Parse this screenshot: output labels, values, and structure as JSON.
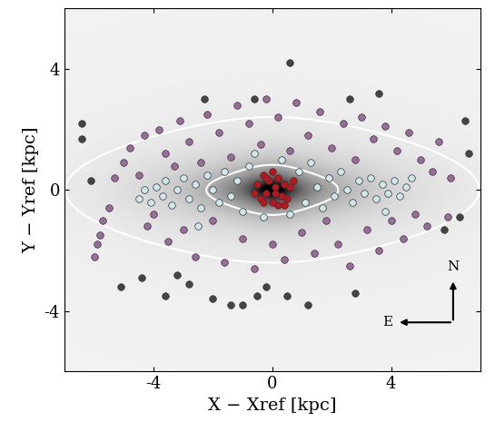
{
  "chart_data": {
    "type": "scatter",
    "xlabel": "X − Xref [kpc]",
    "ylabel": "Y − Yref [kpc]",
    "annotations": [
      "N",
      "E"
    ],
    "xlim": [
      -7,
      7
    ],
    "ylim": [
      -6,
      6
    ],
    "xticks": [
      -4,
      0,
      4
    ],
    "yticks": [
      -4,
      0,
      4
    ],
    "grid": false,
    "marker": "o",
    "series": [
      {
        "color": "#444444",
        "x": [
          -6.4,
          -6.4,
          -6.1,
          -2.3,
          -0.6,
          0.6,
          2.6,
          3.6,
          6.5,
          6.6,
          -3.2,
          -2.8,
          -2.0,
          -1.4,
          -1.0,
          -0.5,
          -0.2,
          0.5,
          1.2,
          -5.1,
          -4.4,
          -3.6,
          5.8,
          6.3,
          2.8
        ],
        "y": [
          2.2,
          1.7,
          0.3,
          3.0,
          3.0,
          4.2,
          3.0,
          3.2,
          2.3,
          1.2,
          -2.8,
          -3.1,
          -3.6,
          -3.8,
          -3.8,
          -3.5,
          -3.2,
          -3.5,
          -3.8,
          -3.2,
          -2.9,
          -3.5,
          -1.3,
          -0.9,
          -3.4
        ]
      },
      {
        "color": "#9b6b9b",
        "x": [
          -6.0,
          -5.9,
          -5.8,
          -5.7,
          -5.5,
          -5.3,
          -5.0,
          -4.8,
          -4.5,
          -4.3,
          -4.2,
          -4.0,
          -3.8,
          -3.6,
          -3.5,
          -3.3,
          -3.1,
          -3.0,
          -2.8,
          -2.6,
          -2.4,
          -2.2,
          -2.0,
          -1.8,
          -1.6,
          -1.4,
          -1.2,
          -1.0,
          -0.8,
          -0.6,
          -0.4,
          -0.2,
          0.0,
          0.2,
          0.4,
          0.6,
          0.8,
          1.0,
          1.2,
          1.4,
          1.6,
          1.8,
          2.0,
          2.2,
          2.4,
          2.6,
          2.8,
          3.0,
          3.2,
          3.4,
          3.6,
          3.8,
          4.0,
          4.2,
          4.4,
          4.6,
          4.8,
          5.0,
          5.2,
          5.4,
          5.6,
          5.9,
          6.0
        ],
        "y": [
          -2.2,
          -1.8,
          -1.5,
          -1.0,
          -0.6,
          0.4,
          0.9,
          1.4,
          0.5,
          1.8,
          -1.2,
          -0.8,
          2.0,
          1.2,
          -1.7,
          0.8,
          2.3,
          -1.3,
          1.6,
          -2.2,
          0.9,
          2.5,
          -1.0,
          1.9,
          -2.4,
          1.1,
          2.8,
          -1.6,
          2.2,
          -2.6,
          1.5,
          3.0,
          -1.8,
          2.4,
          -2.3,
          1.3,
          2.9,
          -1.4,
          1.8,
          -2.1,
          2.6,
          -1.0,
          1.4,
          -1.8,
          2.2,
          -2.5,
          1.0,
          2.4,
          -1.3,
          1.7,
          -2.0,
          2.1,
          -1.0,
          1.3,
          -1.6,
          1.9,
          -0.8,
          1.0,
          -1.2,
          0.6,
          1.6,
          -0.9,
          0.4
        ]
      },
      {
        "color": "#cfe6ea",
        "x": [
          -4.5,
          -4.3,
          -4.1,
          -3.9,
          -3.7,
          -3.6,
          -3.4,
          -3.2,
          -3.0,
          -2.8,
          -2.6,
          -2.4,
          -2.2,
          -2.0,
          -1.8,
          -1.6,
          -1.4,
          -1.2,
          -1.0,
          -0.8,
          -0.6,
          -0.3,
          0.3,
          0.6,
          0.9,
          1.1,
          1.3,
          1.5,
          1.7,
          1.9,
          2.1,
          2.3,
          2.5,
          2.7,
          2.9,
          3.1,
          3.3,
          3.5,
          3.7,
          3.9,
          4.1,
          4.3,
          4.5,
          4.7,
          -2.5,
          3.8
        ],
        "y": [
          -0.3,
          0.0,
          -0.4,
          0.1,
          -0.2,
          0.3,
          -0.5,
          0.0,
          0.4,
          -0.3,
          0.2,
          -0.6,
          0.5,
          0.0,
          -0.4,
          0.6,
          -0.2,
          0.3,
          -0.7,
          0.8,
          1.2,
          -0.9,
          1.0,
          -0.8,
          0.6,
          -0.4,
          0.9,
          0.1,
          -0.6,
          0.4,
          -0.2,
          0.6,
          0.0,
          -0.4,
          0.3,
          -0.1,
          0.4,
          -0.3,
          0.2,
          -0.1,
          0.3,
          -0.2,
          0.1,
          0.4,
          -1.2,
          -0.7
        ]
      },
      {
        "color": "#c0141c",
        "x": [
          -0.5,
          -0.4,
          -0.3,
          -0.2,
          -0.1,
          0.0,
          0.1,
          0.2,
          0.3,
          0.4,
          0.5,
          0.6,
          -0.6,
          0.0,
          0.2,
          -0.2,
          0.4,
          0.7,
          -0.3,
          0.1
        ],
        "y": [
          0.2,
          -0.3,
          0.5,
          -0.1,
          0.3,
          -0.4,
          0.1,
          0.4,
          -0.2,
          0.2,
          -0.3,
          0.1,
          -0.1,
          0.6,
          -0.5,
          0.4,
          -0.5,
          0.3,
          -0.4,
          -0.1
        ]
      }
    ]
  }
}
